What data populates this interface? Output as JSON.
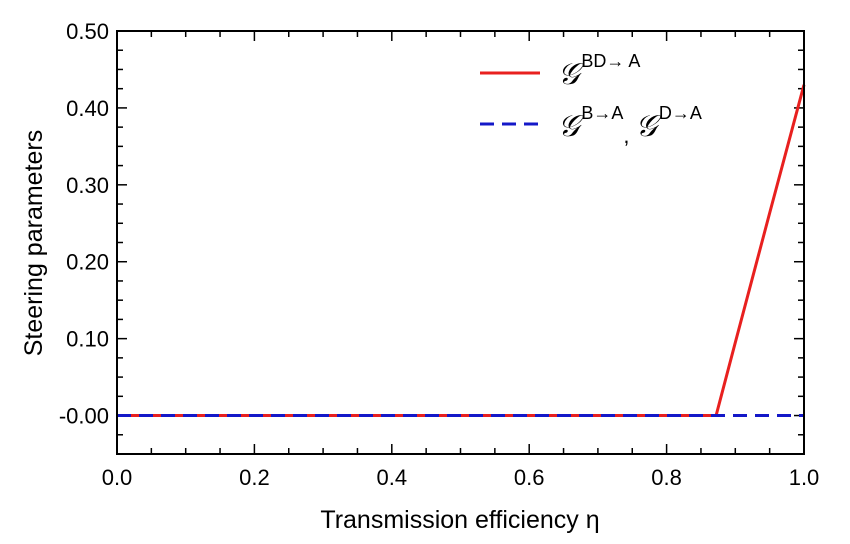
{
  "chart_data": {
    "type": "line",
    "xlabel": "Transmission efficiency η",
    "ylabel": "Steering parameters",
    "xlim": [
      0.0,
      1.0
    ],
    "ylim": [
      -0.05,
      0.5
    ],
    "x_ticks": [
      "0.0",
      "0.2",
      "0.4",
      "0.6",
      "0.8",
      "1.0"
    ],
    "x_tick_values": [
      0.0,
      0.2,
      0.4,
      0.6,
      0.8,
      1.0
    ],
    "y_ticks": [
      "-0.00",
      "0.10",
      "0.20",
      "0.30",
      "0.40",
      "0.50"
    ],
    "y_tick_values": [
      0.0,
      0.1,
      0.2,
      0.3,
      0.4,
      0.5
    ],
    "legend_position": "top-right",
    "grid": false,
    "series": [
      {
        "name": "𝒢^{BD→A}",
        "color": "#e8201f",
        "style": "solid",
        "x": [
          0.0,
          0.2,
          0.4,
          0.6,
          0.8,
          0.872,
          0.9,
          0.95,
          1.0
        ],
        "y": [
          0.0,
          0.0,
          0.0,
          0.0,
          0.0,
          0.0,
          0.095,
          0.263,
          0.43
        ]
      },
      {
        "name": "𝒢^{B→A}, 𝒢^{D→A}",
        "color": "#1418c8",
        "style": "dashed",
        "x": [
          0.0,
          0.2,
          0.4,
          0.6,
          0.8,
          1.0
        ],
        "y": [
          0.0,
          0.0,
          0.0,
          0.0,
          0.0,
          0.0
        ]
      }
    ]
  },
  "legend": {
    "entry1": {
      "symbol": "𝒢",
      "sup": "BD→ A"
    },
    "entry2": {
      "symbol1": "𝒢",
      "sup1": "B→A",
      "sep": ",",
      "symbol2": "𝒢",
      "sup2": "D→A"
    }
  }
}
